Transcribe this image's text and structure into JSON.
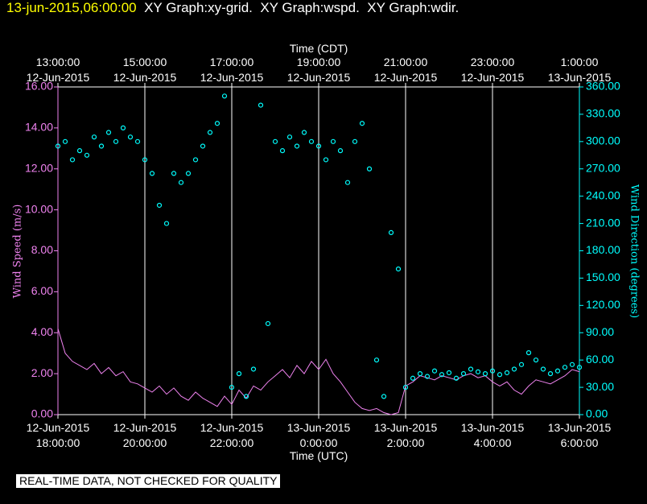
{
  "chart_data": {
    "type": "line-scatter",
    "timestamp": "13-jun-2015,06:00:00",
    "title": "XY Graph:xy-grid.  XY Graph:wspd.  XY Graph:wdir.",
    "x2_label": "Time (CDT)",
    "x_label": "Time (UTC)",
    "y_label": "Wind Speed (m/s)",
    "y2_label": "Wind Direction (degrees)",
    "footer": "REAL-TIME DATA, NOT CHECKED FOR QUALITY",
    "grid": "x",
    "xlim": [
      "2015-06-12 18:00",
      "2015-06-13 06:00"
    ],
    "xticks": [
      {
        "value": "2015-06-12 18:00",
        "label": "12-Jun-2015\n18:00:00"
      },
      {
        "value": "2015-06-12 20:00",
        "label": "12-Jun-2015\n20:00:00"
      },
      {
        "value": "2015-06-12 22:00",
        "label": "12-Jun-2015\n22:00:00"
      },
      {
        "value": "2015-06-13 00:00",
        "label": "13-Jun-2015\n0:00:00"
      },
      {
        "value": "2015-06-13 02:00",
        "label": "13-Jun-2015\n2:00:00"
      },
      {
        "value": "2015-06-13 04:00",
        "label": "13-Jun-2015\n4:00:00"
      },
      {
        "value": "2015-06-13 06:00",
        "label": "13-Jun-2015\n6:00:00"
      }
    ],
    "x2ticks": [
      {
        "value": "2015-06-12 18:00",
        "label": "13:00:00\n12-Jun-2015"
      },
      {
        "value": "2015-06-12 20:00",
        "label": "15:00:00\n12-Jun-2015"
      },
      {
        "value": "2015-06-12 22:00",
        "label": "17:00:00\n12-Jun-2015"
      },
      {
        "value": "2015-06-13 00:00",
        "label": "19:00:00\n12-Jun-2015"
      },
      {
        "value": "2015-06-13 02:00",
        "label": "21:00:00\n12-Jun-2015"
      },
      {
        "value": "2015-06-13 04:00",
        "label": "23:00:00\n12-Jun-2015"
      },
      {
        "value": "2015-06-13 06:00",
        "label": "1:00:00\n13-Jun-2015"
      }
    ],
    "ylim": [
      0,
      16
    ],
    "yticks": [
      {
        "value": 0,
        "label": "0.00"
      },
      {
        "value": 2,
        "label": "2.00"
      },
      {
        "value": 4,
        "label": "4.00"
      },
      {
        "value": 6,
        "label": "6.00"
      },
      {
        "value": 8,
        "label": "8.00"
      },
      {
        "value": 10,
        "label": "10.00"
      },
      {
        "value": 12,
        "label": "12.00"
      },
      {
        "value": 14,
        "label": "14.00"
      },
      {
        "value": 16,
        "label": "16.00"
      }
    ],
    "y2lim": [
      0,
      360
    ],
    "y2ticks": [
      {
        "value": 0,
        "label": "0.00"
      },
      {
        "value": 30,
        "label": "30.00"
      },
      {
        "value": 60,
        "label": "60.00"
      },
      {
        "value": 90,
        "label": "90.00"
      },
      {
        "value": 120,
        "label": "120.00"
      },
      {
        "value": 150,
        "label": "150.00"
      },
      {
        "value": 180,
        "label": "180.00"
      },
      {
        "value": 210,
        "label": "210.00"
      },
      {
        "value": 240,
        "label": "240.00"
      },
      {
        "value": 270,
        "label": "270.00"
      },
      {
        "value": 300,
        "label": "300.00"
      },
      {
        "value": 330,
        "label": "330.00"
      },
      {
        "value": 360,
        "label": "360.00"
      }
    ],
    "x": [
      "2015-06-12 18:00",
      "2015-06-12 18:10",
      "2015-06-12 18:20",
      "2015-06-12 18:30",
      "2015-06-12 18:40",
      "2015-06-12 18:50",
      "2015-06-12 19:00",
      "2015-06-12 19:10",
      "2015-06-12 19:20",
      "2015-06-12 19:30",
      "2015-06-12 19:40",
      "2015-06-12 19:50",
      "2015-06-12 20:00",
      "2015-06-12 20:10",
      "2015-06-12 20:20",
      "2015-06-12 20:30",
      "2015-06-12 20:40",
      "2015-06-12 20:50",
      "2015-06-12 21:00",
      "2015-06-12 21:10",
      "2015-06-12 21:20",
      "2015-06-12 21:30",
      "2015-06-12 21:40",
      "2015-06-12 21:50",
      "2015-06-12 22:00",
      "2015-06-12 22:10",
      "2015-06-12 22:20",
      "2015-06-12 22:30",
      "2015-06-12 22:40",
      "2015-06-12 22:50",
      "2015-06-12 23:00",
      "2015-06-12 23:10",
      "2015-06-12 23:20",
      "2015-06-12 23:30",
      "2015-06-12 23:40",
      "2015-06-12 23:50",
      "2015-06-13 00:00",
      "2015-06-13 00:10",
      "2015-06-13 00:20",
      "2015-06-13 00:30",
      "2015-06-13 00:40",
      "2015-06-13 00:50",
      "2015-06-13 01:00",
      "2015-06-13 01:10",
      "2015-06-13 01:20",
      "2015-06-13 01:30",
      "2015-06-13 01:40",
      "2015-06-13 01:50",
      "2015-06-13 02:00",
      "2015-06-13 02:10",
      "2015-06-13 02:20",
      "2015-06-13 02:30",
      "2015-06-13 02:40",
      "2015-06-13 02:50",
      "2015-06-13 03:00",
      "2015-06-13 03:10",
      "2015-06-13 03:20",
      "2015-06-13 03:30",
      "2015-06-13 03:40",
      "2015-06-13 03:50",
      "2015-06-13 04:00",
      "2015-06-13 04:10",
      "2015-06-13 04:20",
      "2015-06-13 04:30",
      "2015-06-13 04:40",
      "2015-06-13 04:50",
      "2015-06-13 05:00",
      "2015-06-13 05:10",
      "2015-06-13 05:20",
      "2015-06-13 05:30",
      "2015-06-13 05:40",
      "2015-06-13 05:50",
      "2015-06-13 06:00"
    ],
    "series": [
      {
        "type": "line",
        "color": "#ee82ee",
        "values": [
          4.2,
          3.0,
          2.6,
          2.4,
          2.2,
          2.5,
          2.0,
          2.3,
          1.9,
          2.1,
          1.6,
          1.5,
          1.3,
          1.1,
          1.4,
          1.0,
          1.3,
          0.9,
          0.7,
          1.1,
          0.8,
          0.6,
          0.4,
          0.9,
          0.5,
          1.2,
          0.8,
          1.4,
          1.2,
          1.6,
          1.9,
          2.2,
          1.8,
          2.4,
          2.0,
          2.6,
          2.2,
          2.7,
          2.0,
          1.6,
          1.1,
          0.6,
          0.3,
          0.2,
          0.3,
          0.1,
          0.0,
          0.1,
          1.4,
          1.6,
          1.9,
          1.8,
          1.7,
          1.9,
          1.8,
          1.7,
          1.9,
          2.0,
          1.8,
          1.9,
          1.6,
          1.4,
          1.6,
          1.2,
          1.0,
          1.4,
          1.7,
          1.6,
          1.5,
          1.7,
          1.9,
          2.2,
          2.1
        ]
      },
      {
        "type": "scatter",
        "axis": "y2",
        "color": "#00ffff",
        "values": [
          295,
          300,
          280,
          290,
          285,
          305,
          295,
          310,
          300,
          315,
          305,
          300,
          280,
          265,
          230,
          210,
          265,
          255,
          265,
          280,
          295,
          310,
          320,
          350,
          30,
          45,
          20,
          50,
          340,
          100,
          300,
          290,
          305,
          295,
          310,
          300,
          295,
          280,
          300,
          290,
          255,
          300,
          320,
          270,
          60,
          20,
          200,
          160,
          30,
          40,
          45,
          42,
          48,
          44,
          46,
          40,
          45,
          50,
          47,
          45,
          48,
          44,
          46,
          50,
          55,
          68,
          60,
          50,
          45,
          48,
          52,
          55,
          52
        ]
      }
    ]
  }
}
